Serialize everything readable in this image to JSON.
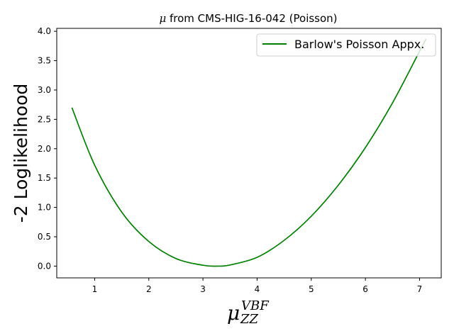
{
  "chart_data": {
    "type": "line",
    "title": {
      "symbol": "μ",
      "text": " from CMS-HIG-16-042 (Poisson)"
    },
    "xlabel": {
      "base": "μ",
      "superscript": "VBF",
      "subscript": "ZZ"
    },
    "ylabel": "-2 Loglikelihood",
    "xlim": [
      0.3,
      7.4
    ],
    "ylim": [
      -0.2,
      4.05
    ],
    "x_ticks": [
      1,
      2,
      3,
      4,
      5,
      6,
      7
    ],
    "y_ticks": [
      0.0,
      0.5,
      1.0,
      1.5,
      2.0,
      2.5,
      3.0,
      3.5,
      4.0
    ],
    "x_tick_labels": [
      "1",
      "2",
      "3",
      "4",
      "5",
      "6",
      "7"
    ],
    "y_tick_labels": [
      "0.0",
      "0.5",
      "1.0",
      "1.5",
      "2.0",
      "2.5",
      "3.0",
      "3.5",
      "4.0"
    ],
    "grid": false,
    "legend_position": "top-right",
    "series": [
      {
        "name": "Barlow's Poisson Appx.",
        "color": "#008000",
        "x": [
          0.58,
          1.0,
          1.5,
          2.0,
          2.5,
          3.0,
          3.27,
          3.5,
          4.0,
          4.5,
          5.0,
          5.5,
          6.0,
          6.5,
          7.0,
          7.12
        ],
        "y": [
          2.7,
          1.72,
          0.92,
          0.42,
          0.13,
          0.015,
          0.0,
          0.02,
          0.15,
          0.44,
          0.85,
          1.38,
          2.02,
          2.78,
          3.66,
          3.87
        ]
      }
    ]
  }
}
